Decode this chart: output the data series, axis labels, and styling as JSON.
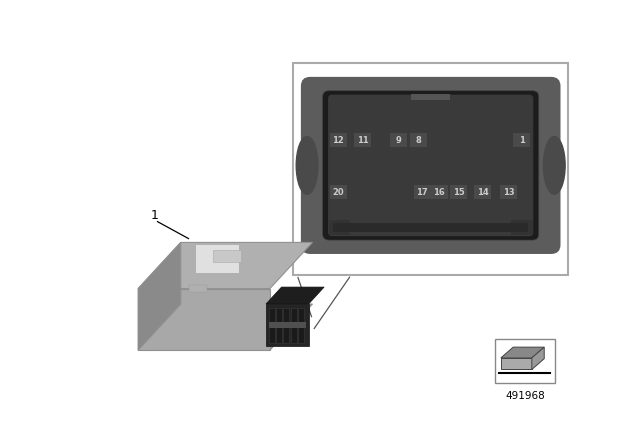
{
  "bg_color": "#ffffff",
  "part_number": "491968",
  "label_1": "1",
  "pin_row1_left": [
    "12",
    "11",
    "9",
    "8"
  ],
  "pin_row1_right": [
    "1"
  ],
  "pin_row2": [
    "20",
    "17",
    "16",
    "15",
    "14",
    "13"
  ],
  "conn_outer_color": "#5c5c5c",
  "conn_mid_color": "#3a3a3a",
  "conn_inner_color": "#1c1c1c",
  "pin_bg": "#4a4a4a",
  "pin_text": "#cccccc",
  "unit_top_color": "#b0b0b0",
  "unit_front_color": "#a8a8a8",
  "unit_side_color": "#8a8a8a",
  "unit_dark_color": "#252525",
  "unit_edge_color": "#909090"
}
